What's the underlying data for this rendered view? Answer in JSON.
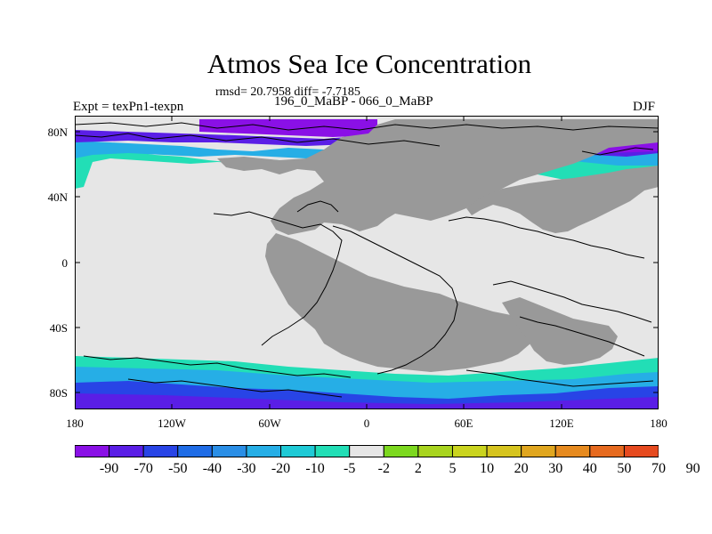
{
  "header": {
    "title": "Atmos Sea Ice Concentration",
    "stats": "rmsd= 20.7958 diff= -7.7185",
    "left_label": "Expt = texPn1-texpn",
    "center_label": "196_0_MaBP - 066_0_MaBP",
    "right_label": "DJF"
  },
  "map": {
    "lat_labels": [
      "80N",
      "40N",
      "0",
      "40S",
      "80S"
    ],
    "lon_labels": [
      "180",
      "120W",
      "60W",
      "0",
      "60E",
      "120E",
      "180"
    ],
    "ocean_color": "#e6e6e6",
    "land_color": "#999999"
  },
  "colorbar": {
    "labels": [
      "-90",
      "-70",
      "-50",
      "-40",
      "-30",
      "-20",
      "-10",
      "-5",
      "-2",
      "2",
      "5",
      "10",
      "20",
      "30",
      "40",
      "50",
      "70",
      "90"
    ],
    "colors": [
      "#8a10e6",
      "#5a1ee6",
      "#2844e6",
      "#1f6ce6",
      "#2a8ee6",
      "#26aee6",
      "#1fcad6",
      "#22deb6",
      "#e6e6e6",
      "#7cd81f",
      "#a8d41f",
      "#cad41f",
      "#d6c41f",
      "#e0a61f",
      "#e68a1f",
      "#e66a1f",
      "#e64a1f"
    ]
  }
}
